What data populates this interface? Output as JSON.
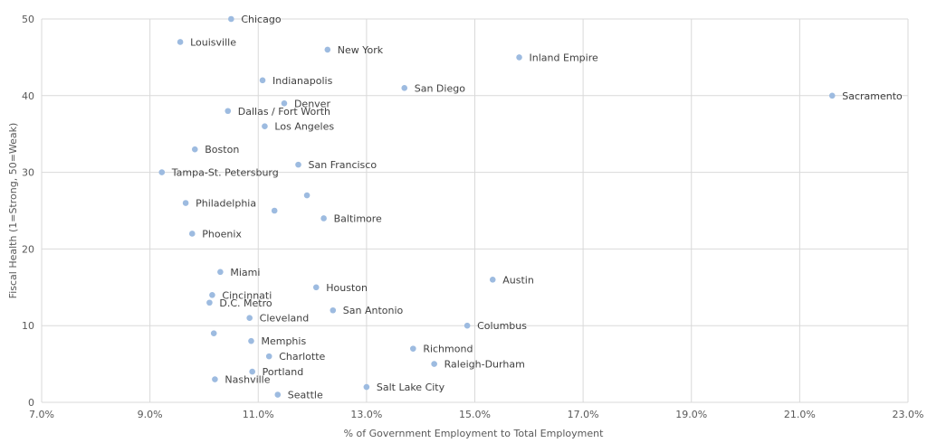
{
  "chart_data": {
    "type": "scatter",
    "title": "",
    "xlabel": "% of Government Employment to Total Employment",
    "ylabel": "Fiscal Health (1=Strong, 50=Weak)",
    "xlim": [
      7.0,
      23.0
    ],
    "ylim": [
      0,
      50
    ],
    "x_ticks": [
      7,
      9,
      11,
      13,
      15,
      17,
      19,
      21,
      23
    ],
    "x_tick_labels": [
      "7.0%",
      "9.0%",
      "11.0%",
      "13.0%",
      "15.0%",
      "17.0%",
      "19.0%",
      "21.0%",
      "23.0%"
    ],
    "y_ticks": [
      0,
      10,
      20,
      30,
      40,
      50
    ],
    "y_tick_labels": [
      "0",
      "10",
      "20",
      "30",
      "40",
      "50"
    ],
    "grid": true,
    "legend": "none",
    "colors": {
      "point": "#9dbbe0",
      "grid": "#d9d9d9",
      "axis_text": "#595959",
      "label_text": "#404040"
    },
    "points": [
      {
        "label": "Chicago",
        "x": 10.5,
        "y": 50
      },
      {
        "label": "Louisville",
        "x": 9.56,
        "y": 47
      },
      {
        "label": "New York",
        "x": 12.28,
        "y": 46
      },
      {
        "label": "Inland Empire",
        "x": 15.82,
        "y": 45
      },
      {
        "label": "Indianapolis",
        "x": 11.08,
        "y": 42
      },
      {
        "label": "San Diego",
        "x": 13.7,
        "y": 41
      },
      {
        "label": "Sacramento",
        "x": 21.6,
        "y": 40
      },
      {
        "label": "Denver",
        "x": 11.48,
        "y": 39
      },
      {
        "label": "Dallas / Fort Worth",
        "x": 10.44,
        "y": 38
      },
      {
        "label": "Los Angeles",
        "x": 11.12,
        "y": 36
      },
      {
        "label": "Boston",
        "x": 9.83,
        "y": 33
      },
      {
        "label": "San Francisco",
        "x": 11.74,
        "y": 31
      },
      {
        "label": "Tampa-St. Petersburg",
        "x": 9.22,
        "y": 30
      },
      {
        "label": "",
        "x": 11.9,
        "y": 27
      },
      {
        "label": "Philadelphia",
        "x": 9.66,
        "y": 26
      },
      {
        "label": "",
        "x": 11.3,
        "y": 25
      },
      {
        "label": "Baltimore",
        "x": 12.21,
        "y": 24
      },
      {
        "label": "Phoenix",
        "x": 9.78,
        "y": 22
      },
      {
        "label": "Miami",
        "x": 10.3,
        "y": 17
      },
      {
        "label": "Austin",
        "x": 15.33,
        "y": 16
      },
      {
        "label": "Houston",
        "x": 12.07,
        "y": 15
      },
      {
        "label": "Cincinnati",
        "x": 10.15,
        "y": 14
      },
      {
        "label": "D.C. Metro",
        "x": 10.1,
        "y": 13
      },
      {
        "label": "San Antonio",
        "x": 12.38,
        "y": 12
      },
      {
        "label": "Cleveland",
        "x": 10.84,
        "y": 11
      },
      {
        "label": "Columbus",
        "x": 14.86,
        "y": 10
      },
      {
        "label": "",
        "x": 10.18,
        "y": 9
      },
      {
        "label": "Memphis",
        "x": 10.87,
        "y": 8
      },
      {
        "label": "Richmond",
        "x": 13.86,
        "y": 7
      },
      {
        "label": "Charlotte",
        "x": 11.2,
        "y": 6
      },
      {
        "label": "Raleigh-Durham",
        "x": 14.25,
        "y": 5
      },
      {
        "label": "Portland",
        "x": 10.89,
        "y": 4
      },
      {
        "label": "Nashville",
        "x": 10.2,
        "y": 3
      },
      {
        "label": "Salt Lake City",
        "x": 13.0,
        "y": 2
      },
      {
        "label": "Seattle",
        "x": 11.36,
        "y": 1
      }
    ]
  }
}
